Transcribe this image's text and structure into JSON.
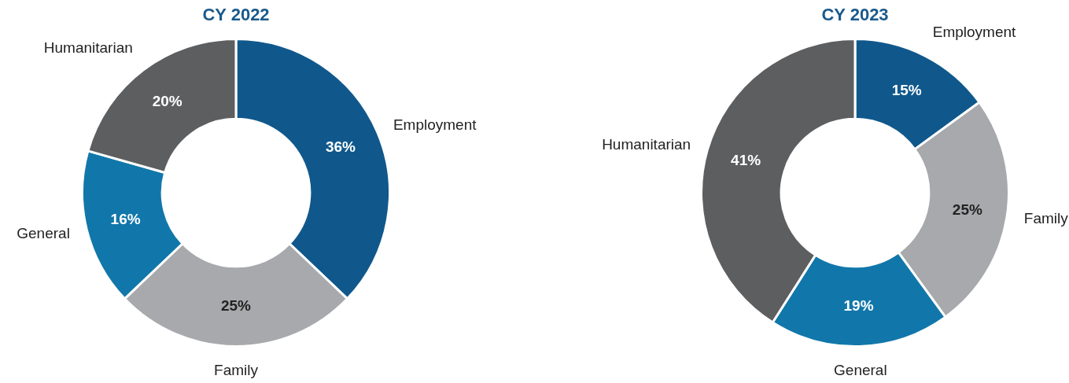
{
  "chart_data": [
    {
      "type": "donut",
      "title": "CY 2022",
      "categories": [
        "Employment",
        "Family",
        "General",
        "Humanitarian"
      ],
      "values": [
        36,
        25,
        16,
        20
      ],
      "value_labels": [
        "36%",
        "25%",
        "16%",
        "20%"
      ],
      "colors": [
        "#10588c",
        "#a7a9ac",
        "#1177aa",
        "#5d5e60"
      ]
    },
    {
      "type": "donut",
      "title": "CY 2023",
      "categories": [
        "Employment",
        "Family",
        "General",
        "Humanitarian"
      ],
      "values": [
        15,
        25,
        19,
        41
      ],
      "value_labels": [
        "15%",
        "25%",
        "19%",
        "41%"
      ],
      "colors": [
        "#10588c",
        "#a7a9ac",
        "#1177aa",
        "#5d5e60"
      ]
    }
  ]
}
